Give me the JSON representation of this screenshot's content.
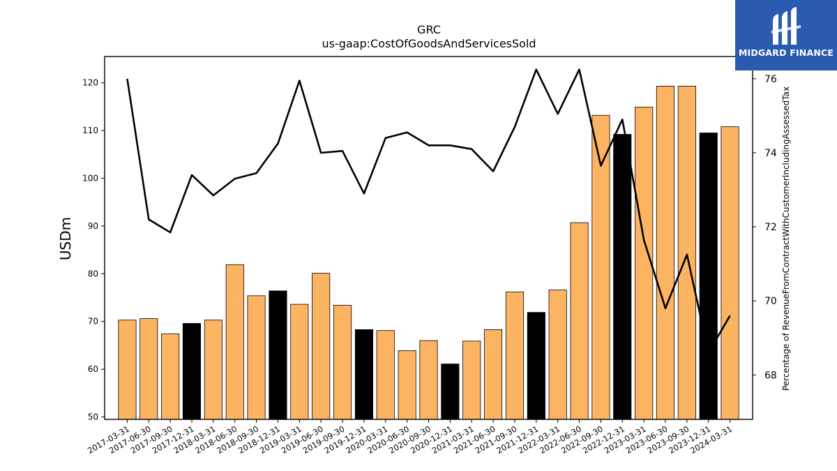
{
  "chart_data": {
    "type": "bar",
    "title": "GRC",
    "subtitle": "us-gaap:CostOfGoodsAndServicesSold",
    "ylabel": "USDm",
    "y2label": "Percentage of RevenueFromContractWithCustomerIncludingAssessedTax",
    "ylim": [
      49.5,
      125.5
    ],
    "y2lim": [
      66.8,
      76.6
    ],
    "yticks": [
      50,
      60,
      70,
      80,
      90,
      100,
      110,
      120
    ],
    "y2ticks": [
      68,
      70,
      72,
      74,
      76
    ],
    "categories": [
      "2017-03-31",
      "2017-06-30",
      "2017-09-30",
      "2017-12-31",
      "2018-03-31",
      "2018-06-30",
      "2018-09-30",
      "2018-12-31",
      "2019-03-31",
      "2019-06-30",
      "2019-09-30",
      "2019-12-31",
      "2020-03-31",
      "2020-06-30",
      "2020-09-30",
      "2020-12-31",
      "2021-03-31",
      "2021-06-30",
      "2021-09-30",
      "2021-12-31",
      "2022-03-31",
      "2022-06-30",
      "2022-09-30",
      "2022-12-31",
      "2023-03-31",
      "2023-06-30",
      "2023-09-30",
      "2023-12-31",
      "2024-03-31"
    ],
    "series": [
      {
        "kind": "bar",
        "axis": "left",
        "values": [
          70.3,
          70.6,
          67.4,
          69.6,
          70.3,
          81.9,
          75.4,
          76.4,
          73.6,
          80.1,
          73.4,
          68.3,
          68.1,
          63.9,
          66.0,
          61.1,
          65.9,
          68.3,
          76.2,
          71.9,
          76.6,
          90.7,
          113.2,
          109.2,
          114.9,
          119.3,
          119.3,
          109.5,
          110.8
        ]
      },
      {
        "kind": "line",
        "axis": "right",
        "values": [
          76.0,
          72.2,
          71.85,
          73.4,
          72.85,
          73.3,
          73.45,
          74.25,
          75.95,
          74.0,
          74.05,
          72.9,
          74.4,
          74.55,
          74.2,
          74.2,
          74.1,
          73.5,
          74.7,
          76.25,
          75.05,
          76.25,
          73.65,
          74.9,
          71.65,
          69.8,
          71.25,
          68.6,
          69.6
        ]
      }
    ],
    "colors": {
      "bar": "#fdb462",
      "bar_q4": "#000000",
      "line": "#000000"
    },
    "grid": false,
    "legend": "none"
  },
  "logo": {
    "text": "MIDGARD FINANCE",
    "icon": "midgard-logo-icon"
  }
}
